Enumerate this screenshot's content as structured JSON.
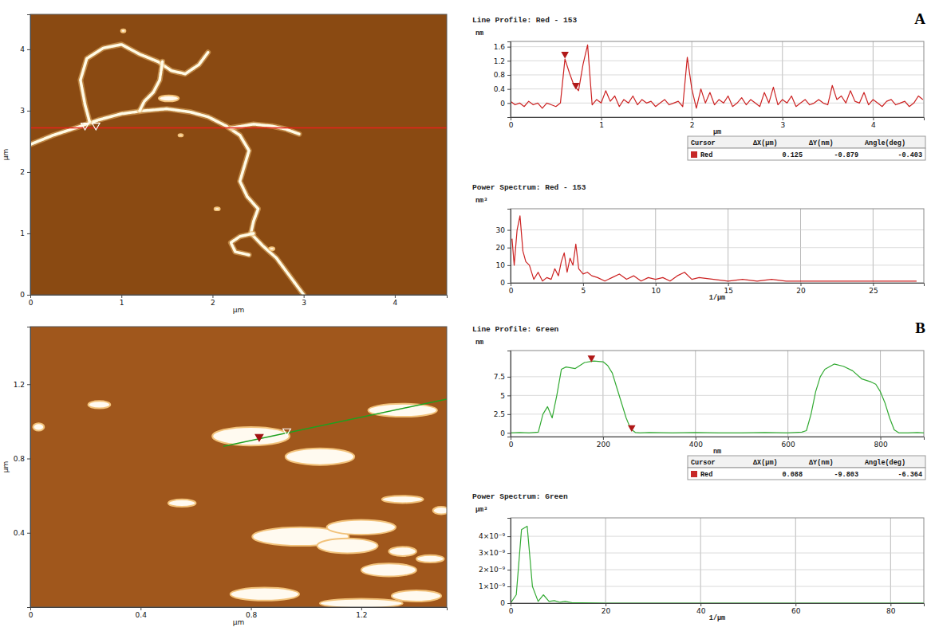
{
  "chart_data": [
    {
      "type": "image",
      "xlabel": "μm",
      "ylabel": "μm",
      "xlim": [
        0,
        4.57
      ],
      "ylim": [
        0,
        4.57
      ],
      "xticks": [
        0,
        1,
        2,
        3,
        4
      ],
      "yticks": [
        0,
        1,
        2,
        3,
        4
      ],
      "strands": [
        {
          "x": [
            0,
            0.25,
            0.5,
            0.75,
            1.0,
            1.25,
            1.5,
            1.75,
            1.95,
            2.15,
            2.3,
            2.4,
            2.35,
            2.3,
            2.38,
            2.5,
            2.45,
            2.42,
            2.55,
            2.7,
            2.8,
            2.9,
            3.0
          ],
          "y": [
            2.45,
            2.6,
            2.72,
            2.85,
            2.95,
            3.0,
            3.03,
            2.98,
            2.9,
            2.75,
            2.6,
            2.35,
            2.1,
            1.85,
            1.6,
            1.4,
            1.2,
            1.0,
            0.8,
            0.6,
            0.4,
            0.2,
            0.0
          ]
        },
        {
          "x": [
            0.65,
            0.6,
            0.55,
            0.62,
            0.8,
            1.0,
            1.2,
            1.4,
            1.55,
            1.7,
            1.85,
            1.95
          ],
          "y": [
            2.82,
            3.1,
            3.5,
            3.85,
            4.02,
            4.08,
            3.92,
            3.8,
            3.65,
            3.6,
            3.75,
            3.95
          ]
        },
        {
          "x": [
            1.45,
            1.42,
            1.35,
            1.25,
            1.2
          ],
          "y": [
            3.8,
            3.5,
            3.3,
            3.15,
            3.0
          ]
        },
        {
          "x": [
            2.2,
            2.45,
            2.65,
            2.8,
            2.95
          ],
          "y": [
            2.72,
            2.78,
            2.75,
            2.7,
            2.62
          ]
        },
        {
          "x": [
            2.45,
            2.3,
            2.2,
            2.25,
            2.4
          ],
          "y": [
            1.0,
            0.95,
            0.85,
            0.7,
            0.65
          ]
        }
      ],
      "blobs": {
        "x": [
          1.52,
          2.05,
          2.65,
          1.02,
          1.65
        ],
        "y": [
          3.2,
          1.4,
          0.75,
          4.3,
          2.6
        ],
        "w": [
          0.22,
          0.06,
          0.06,
          0.05,
          0.05
        ],
        "h": [
          0.1,
          0.05,
          0.05,
          0.05,
          0.04
        ]
      },
      "scan_line": {
        "x": [
          0,
          4.57
        ],
        "y": [
          2.72,
          2.72
        ],
        "color": "#e8231a"
      },
      "cursors": {
        "x": [
          0.6,
          0.72
        ],
        "y": [
          2.72,
          2.72
        ]
      }
    },
    {
      "type": "line",
      "title": "Line Profile: Red - 153",
      "panel_label": "A",
      "xlabel": "μm",
      "ylabel": "nm",
      "xlim": [
        0,
        4.56
      ],
      "ylim": [
        -0.4,
        1.75
      ],
      "xticks": [
        0,
        1,
        2,
        3,
        4
      ],
      "yticks": [
        0,
        0.4,
        0.8,
        1.2,
        1.6
      ],
      "grid": true,
      "color": "#cc2222",
      "x": [
        0,
        0.05,
        0.1,
        0.15,
        0.2,
        0.25,
        0.3,
        0.35,
        0.4,
        0.45,
        0.5,
        0.55,
        0.6,
        0.65,
        0.7,
        0.75,
        0.8,
        0.85,
        0.9,
        0.95,
        1.0,
        1.05,
        1.1,
        1.15,
        1.2,
        1.25,
        1.3,
        1.35,
        1.4,
        1.45,
        1.5,
        1.55,
        1.6,
        1.65,
        1.7,
        1.75,
        1.8,
        1.85,
        1.9,
        1.95,
        2.0,
        2.05,
        2.1,
        2.15,
        2.2,
        2.25,
        2.3,
        2.35,
        2.4,
        2.45,
        2.5,
        2.55,
        2.6,
        2.65,
        2.7,
        2.75,
        2.8,
        2.85,
        2.9,
        2.95,
        3.0,
        3.05,
        3.1,
        3.15,
        3.2,
        3.25,
        3.3,
        3.35,
        3.4,
        3.45,
        3.5,
        3.55,
        3.6,
        3.65,
        3.7,
        3.75,
        3.8,
        3.85,
        3.9,
        3.95,
        4.0,
        4.05,
        4.1,
        4.15,
        4.2,
        4.25,
        4.3,
        4.35,
        4.4,
        4.45,
        4.5,
        4.55
      ],
      "values": [
        0.05,
        -0.05,
        0.0,
        -0.1,
        0.05,
        -0.05,
        0.0,
        -0.15,
        0.0,
        -0.05,
        -0.1,
        0.0,
        1.25,
        0.85,
        0.5,
        0.35,
        1.1,
        1.65,
        -0.05,
        0.1,
        0.0,
        0.35,
        0.05,
        0.2,
        -0.1,
        0.1,
        0.0,
        0.2,
        -0.05,
        0.1,
        0.0,
        0.05,
        -0.1,
        0.0,
        0.1,
        -0.05,
        0.0,
        0.05,
        -0.1,
        1.3,
        0.4,
        -0.15,
        0.4,
        0.0,
        0.3,
        -0.05,
        0.1,
        0.0,
        0.2,
        -0.1,
        0.0,
        0.15,
        -0.05,
        0.1,
        0.0,
        -0.1,
        0.3,
        0.0,
        0.45,
        -0.05,
        0.1,
        0.0,
        0.2,
        -0.1,
        0.0,
        0.1,
        -0.05,
        0.0,
        0.1,
        0.0,
        -0.05,
        0.5,
        0.1,
        0.2,
        0.0,
        0.35,
        0.05,
        0.0,
        0.3,
        -0.05,
        0.1,
        0.0,
        -0.1,
        0.05,
        0.1,
        -0.05,
        0.0,
        0.05,
        -0.1,
        0.0,
        0.2,
        0.1
      ],
      "cursors": {
        "x": [
          0.6,
          0.72
        ],
        "y": [
          1.3,
          0.42
        ]
      },
      "cursor_table": {
        "header": [
          "Cursor",
          "ΔX(μm)",
          "ΔY(nm)",
          "Angle(deg)"
        ],
        "rows": [
          [
            "Red",
            0.125,
            -0.879,
            -0.403
          ]
        ]
      }
    },
    {
      "type": "line",
      "title": "Power Spectrum: Red - 153",
      "xlabel": "1/μm",
      "ylabel": "nm³",
      "xlim": [
        0,
        28.5
      ],
      "ylim": [
        0,
        42
      ],
      "xticks": [
        0,
        5,
        10,
        15,
        20,
        25
      ],
      "yticks": [
        0,
        10,
        20,
        30
      ],
      "grid": true,
      "color": "#cc2222",
      "x": [
        0.1,
        0.25,
        0.45,
        0.65,
        0.85,
        1.05,
        1.3,
        1.6,
        1.9,
        2.2,
        2.5,
        2.8,
        3.05,
        3.3,
        3.5,
        3.7,
        3.9,
        4.1,
        4.3,
        4.5,
        4.7,
        5.0,
        5.3,
        5.6,
        6.0,
        6.5,
        7.0,
        7.5,
        8.0,
        8.5,
        9.0,
        9.5,
        10.0,
        10.5,
        11.0,
        11.5,
        12.0,
        12.5,
        13.0,
        14.0,
        15.0,
        16.0,
        17.0,
        18.0,
        19.0,
        20.0,
        21.0,
        22.0,
        23.0,
        24.0,
        25.0,
        26.0,
        27.0,
        28.0
      ],
      "values": [
        25,
        10,
        30,
        38,
        18,
        12,
        10,
        2,
        6,
        1,
        3,
        2,
        8,
        4,
        12,
        17,
        6,
        14,
        10,
        22,
        8,
        5,
        6,
        4,
        3,
        1,
        3,
        5,
        2,
        4,
        1,
        3,
        2,
        3,
        1,
        4,
        6,
        2,
        3,
        2,
        1,
        2,
        1,
        2,
        1,
        1,
        1,
        1,
        1,
        1,
        1,
        1,
        1,
        1
      ]
    },
    {
      "type": "image",
      "xlabel": "μm",
      "ylabel": "μm",
      "xlim": [
        0,
        1.51
      ],
      "ylim": [
        0,
        1.51
      ],
      "xticks": [
        0,
        0.4,
        0.8,
        1.2
      ],
      "yticks": [
        0.4,
        0.8,
        1.2
      ],
      "strands": [],
      "blobs": {
        "x": [
          0.8,
          1.35,
          1.05,
          1.35,
          1.49,
          0.98,
          1.2,
          1.15,
          1.35,
          1.3,
          1.45,
          0.85,
          1.2,
          1.4,
          0.55,
          0.25,
          0.03
        ],
        "y": [
          0.92,
          1.06,
          0.81,
          0.58,
          0.52,
          0.38,
          0.43,
          0.33,
          0.3,
          0.2,
          0.26,
          0.07,
          0.02,
          0.06,
          0.56,
          1.09,
          0.97
        ],
        "w": [
          0.28,
          0.25,
          0.25,
          0.15,
          0.06,
          0.35,
          0.25,
          0.22,
          0.1,
          0.2,
          0.1,
          0.25,
          0.3,
          0.18,
          0.1,
          0.08,
          0.04
        ],
        "h": [
          0.1,
          0.07,
          0.09,
          0.04,
          0.04,
          0.1,
          0.08,
          0.08,
          0.05,
          0.07,
          0.04,
          0.07,
          0.05,
          0.06,
          0.04,
          0.04,
          0.04
        ]
      },
      "scan_line": {
        "x": [
          0.7,
          1.51
        ],
        "y": [
          0.865,
          1.12
        ],
        "color": "#1fa01f"
      },
      "cursors": {
        "x": [
          0.83,
          0.93
        ],
        "y": [
          0.905,
          0.935
        ]
      }
    },
    {
      "type": "line",
      "title": "Line Profile: Green",
      "panel_label": "B",
      "xlabel": "nm",
      "ylabel": "nm",
      "xlim": [
        0,
        894
      ],
      "ylim": [
        -0.5,
        11
      ],
      "xticks": [
        0,
        200,
        400,
        600,
        800
      ],
      "yticks": [
        0,
        2.5,
        5,
        7.5
      ],
      "grid": true,
      "color": "#33aa33",
      "x": [
        0,
        20,
        40,
        60,
        70,
        80,
        90,
        100,
        110,
        120,
        140,
        160,
        180,
        200,
        210,
        220,
        230,
        240,
        250,
        260,
        270,
        280,
        300,
        350,
        400,
        450,
        500,
        550,
        600,
        630,
        640,
        650,
        660,
        670,
        680,
        700,
        720,
        740,
        760,
        780,
        790,
        800,
        810,
        820,
        830,
        840,
        860,
        880,
        894
      ],
      "values": [
        0,
        0.05,
        0,
        0.1,
        2.5,
        3.5,
        2,
        5,
        8.5,
        8.8,
        8.6,
        9.4,
        9.6,
        9.5,
        9,
        8,
        6,
        4,
        2,
        0.5,
        0.05,
        0,
        0.05,
        0,
        0.05,
        0,
        0,
        0.05,
        0,
        0.1,
        0.3,
        2.5,
        5.5,
        7.5,
        8.5,
        9.2,
        8.9,
        8.3,
        7.2,
        6.8,
        6.5,
        5.5,
        4,
        2,
        0.4,
        0,
        0,
        0.05,
        0
      ],
      "cursors": {
        "x": [
          175,
          262
        ],
        "y": [
          9.6,
          0.3
        ]
      },
      "cursor_table": {
        "header": [
          "Cursor",
          "ΔX(μm)",
          "ΔY(nm)",
          "Angle(deg)"
        ],
        "rows": [
          [
            "Red",
            0.088,
            -9.803,
            -6.364
          ]
        ]
      }
    },
    {
      "type": "line",
      "title": "Power Spectrum: Green",
      "xlabel": "1/μm",
      "ylabel": "μm³",
      "xlim": [
        0,
        87
      ],
      "ylim": [
        0,
        5.1e-09
      ],
      "xticks": [
        0,
        20,
        40,
        60,
        80
      ],
      "yticks": [
        0,
        {
          "value": 1e-09,
          "label": "1×10⁻⁹"
        },
        {
          "value": 2e-09,
          "label": "2×10⁻⁹"
        },
        {
          "value": 3e-09,
          "label": "3×10⁻⁹"
        },
        {
          "value": 4e-09,
          "label": "4×10⁻⁹"
        }
      ],
      "grid": true,
      "color": "#33aa33",
      "x": [
        0,
        1.2,
        2.3,
        3.5,
        4.6,
        5.8,
        6.9,
        8.1,
        9.2,
        10.4,
        11.5,
        13,
        15,
        20,
        25,
        30,
        40,
        50,
        60,
        70,
        80,
        87
      ],
      "values": [
        0,
        5e-10,
        4.4e-09,
        4.6e-09,
        1e-09,
        1e-10,
        5e-10,
        1e-10,
        1.5e-10,
        5e-11,
        1e-10,
        2e-11,
        2e-11,
        0,
        0,
        0,
        0,
        0,
        0,
        0,
        0,
        0
      ]
    }
  ]
}
